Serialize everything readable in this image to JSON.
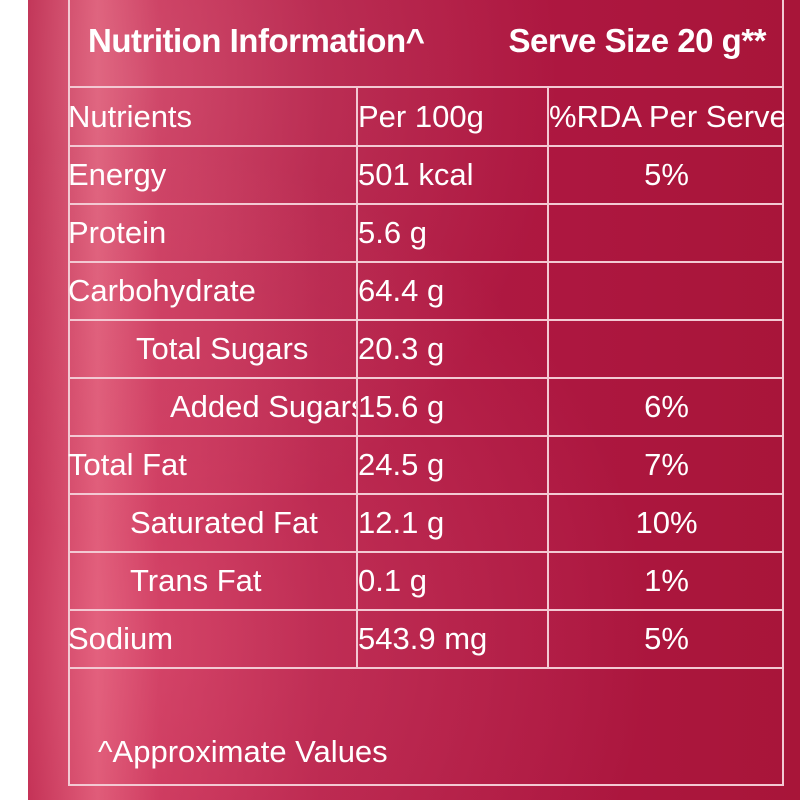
{
  "header": {
    "title": "Nutrition Information^",
    "serve_size": "Serve Size 20 g**"
  },
  "table": {
    "columns": [
      "Nutrients",
      "Per 100g",
      "%RDA Per Serve"
    ],
    "rows": [
      {
        "nutrient": "Energy",
        "per_100g": "501 kcal",
        "rda": "5%"
      },
      {
        "nutrient": "Protein",
        "per_100g": "5.6 g",
        "rda": ""
      },
      {
        "nutrient": "Carbohydrate",
        "per_100g": "64.4 g",
        "rda": ""
      },
      {
        "nutrient": "Total Sugars",
        "per_100g": "20.3 g",
        "rda": ""
      },
      {
        "nutrient": "Added Sugars",
        "per_100g": "15.6 g",
        "rda": "6%"
      },
      {
        "nutrient": "Total Fat",
        "per_100g": "24.5 g",
        "rda": "7%"
      },
      {
        "nutrient": "Saturated Fat",
        "per_100g": "12.1 g",
        "rda": "10%"
      },
      {
        "nutrient": "Trans Fat",
        "per_100g": "0.1 g",
        "rda": "1%"
      },
      {
        "nutrient": "Sodium",
        "per_100g": "543.9 mg",
        "rda": "5%"
      }
    ]
  },
  "footer": {
    "note": "^Approximate Values"
  },
  "colors": {
    "background": "#b01a42",
    "border": "#f3c9d3",
    "text": "#ffffff"
  }
}
